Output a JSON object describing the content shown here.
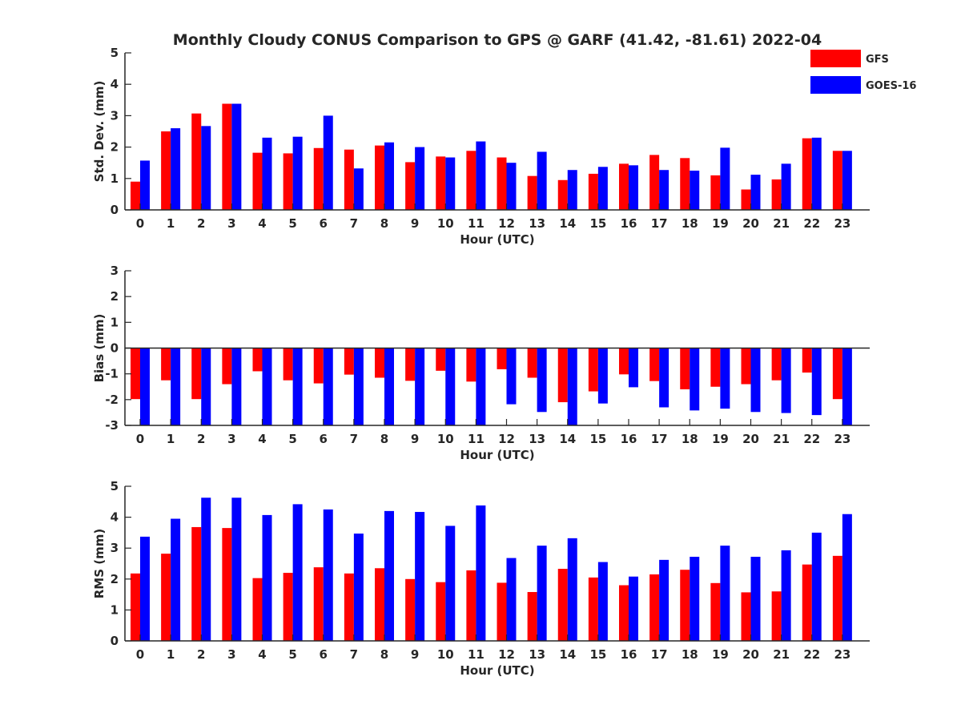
{
  "figure": {
    "title": "Monthly Cloudy CONUS Comparison to GPS @ GARF (41.42, -81.61) 2022-04"
  },
  "legend": {
    "position": "top-right",
    "items": [
      {
        "label": "GFS",
        "color": "#ff0000"
      },
      {
        "label": "GOES-16",
        "color": "#0000ff"
      }
    ]
  },
  "chart_data": [
    {
      "type": "bar",
      "xlabel": "Hour (UTC)",
      "ylabel": "Std. Dev. (mm)",
      "ylim": [
        0,
        5
      ],
      "yticks": [
        0,
        1,
        2,
        3,
        4,
        5
      ],
      "categories": [
        "0",
        "1",
        "2",
        "3",
        "4",
        "5",
        "6",
        "7",
        "8",
        "9",
        "10",
        "11",
        "12",
        "13",
        "14",
        "15",
        "16",
        "17",
        "18",
        "19",
        "20",
        "21",
        "22",
        "23"
      ],
      "series": [
        {
          "name": "GFS",
          "color": "#ff0000",
          "values": [
            0.9,
            2.5,
            3.07,
            3.38,
            1.82,
            1.8,
            1.97,
            1.92,
            2.05,
            1.52,
            1.7,
            1.88,
            1.67,
            1.08,
            0.95,
            1.15,
            1.47,
            1.75,
            1.65,
            1.1,
            0.65,
            0.97,
            2.28,
            1.88
          ]
        },
        {
          "name": "GOES-16",
          "color": "#0000ff",
          "values": [
            1.57,
            2.6,
            2.67,
            3.38,
            2.3,
            2.33,
            3.0,
            1.32,
            2.15,
            2.0,
            1.67,
            2.18,
            1.5,
            1.85,
            1.27,
            1.37,
            1.42,
            1.27,
            1.25,
            1.98,
            1.12,
            1.47,
            2.3,
            1.88
          ]
        }
      ]
    },
    {
      "type": "bar",
      "xlabel": "Hour (UTC)",
      "ylabel": "Bias (mm)",
      "ylim": [
        -3,
        3
      ],
      "yticks": [
        -3,
        -2,
        -1,
        0,
        1,
        2,
        3
      ],
      "categories": [
        "0",
        "1",
        "2",
        "3",
        "4",
        "5",
        "6",
        "7",
        "8",
        "9",
        "10",
        "11",
        "12",
        "13",
        "14",
        "15",
        "16",
        "17",
        "18",
        "19",
        "20",
        "21",
        "22",
        "23"
      ],
      "series": [
        {
          "name": "GFS",
          "color": "#ff0000",
          "values": [
            -1.98,
            -1.25,
            -1.98,
            -1.4,
            -0.9,
            -1.25,
            -1.37,
            -1.03,
            -1.15,
            -1.27,
            -0.88,
            -1.3,
            -0.82,
            -1.15,
            -2.1,
            -1.68,
            -1.02,
            -1.28,
            -1.6,
            -1.5,
            -1.4,
            -1.25,
            -0.95,
            -1.98
          ]
        },
        {
          "name": "GOES-16",
          "color": "#0000ff",
          "values": [
            -3.0,
            -3.0,
            -3.0,
            -3.0,
            -3.0,
            -3.0,
            -3.0,
            -3.0,
            -3.0,
            -3.0,
            -3.0,
            -3.0,
            -2.18,
            -2.48,
            -3.0,
            -2.15,
            -1.52,
            -2.3,
            -2.42,
            -2.35,
            -2.48,
            -2.52,
            -2.6,
            -3.0
          ]
        }
      ]
    },
    {
      "type": "bar",
      "xlabel": "Hour (UTC)",
      "ylabel": "RMS (mm)",
      "ylim": [
        0,
        5
      ],
      "yticks": [
        0,
        1,
        2,
        3,
        4,
        5
      ],
      "categories": [
        "0",
        "1",
        "2",
        "3",
        "4",
        "5",
        "6",
        "7",
        "8",
        "9",
        "10",
        "11",
        "12",
        "13",
        "14",
        "15",
        "16",
        "17",
        "18",
        "19",
        "20",
        "21",
        "22",
        "23"
      ],
      "series": [
        {
          "name": "GFS",
          "color": "#ff0000",
          "values": [
            2.18,
            2.82,
            3.68,
            3.65,
            2.03,
            2.2,
            2.38,
            2.18,
            2.35,
            2.0,
            1.9,
            2.28,
            1.88,
            1.58,
            2.33,
            2.05,
            1.8,
            2.15,
            2.3,
            1.87,
            1.57,
            1.6,
            2.47,
            2.75
          ]
        },
        {
          "name": "GOES-16",
          "color": "#0000ff",
          "values": [
            3.37,
            3.95,
            4.63,
            4.63,
            4.07,
            4.42,
            4.25,
            3.47,
            4.2,
            4.17,
            3.72,
            4.38,
            2.68,
            3.08,
            3.32,
            2.55,
            2.08,
            2.62,
            2.72,
            3.08,
            2.72,
            2.93,
            3.5,
            4.1
          ]
        }
      ]
    }
  ]
}
